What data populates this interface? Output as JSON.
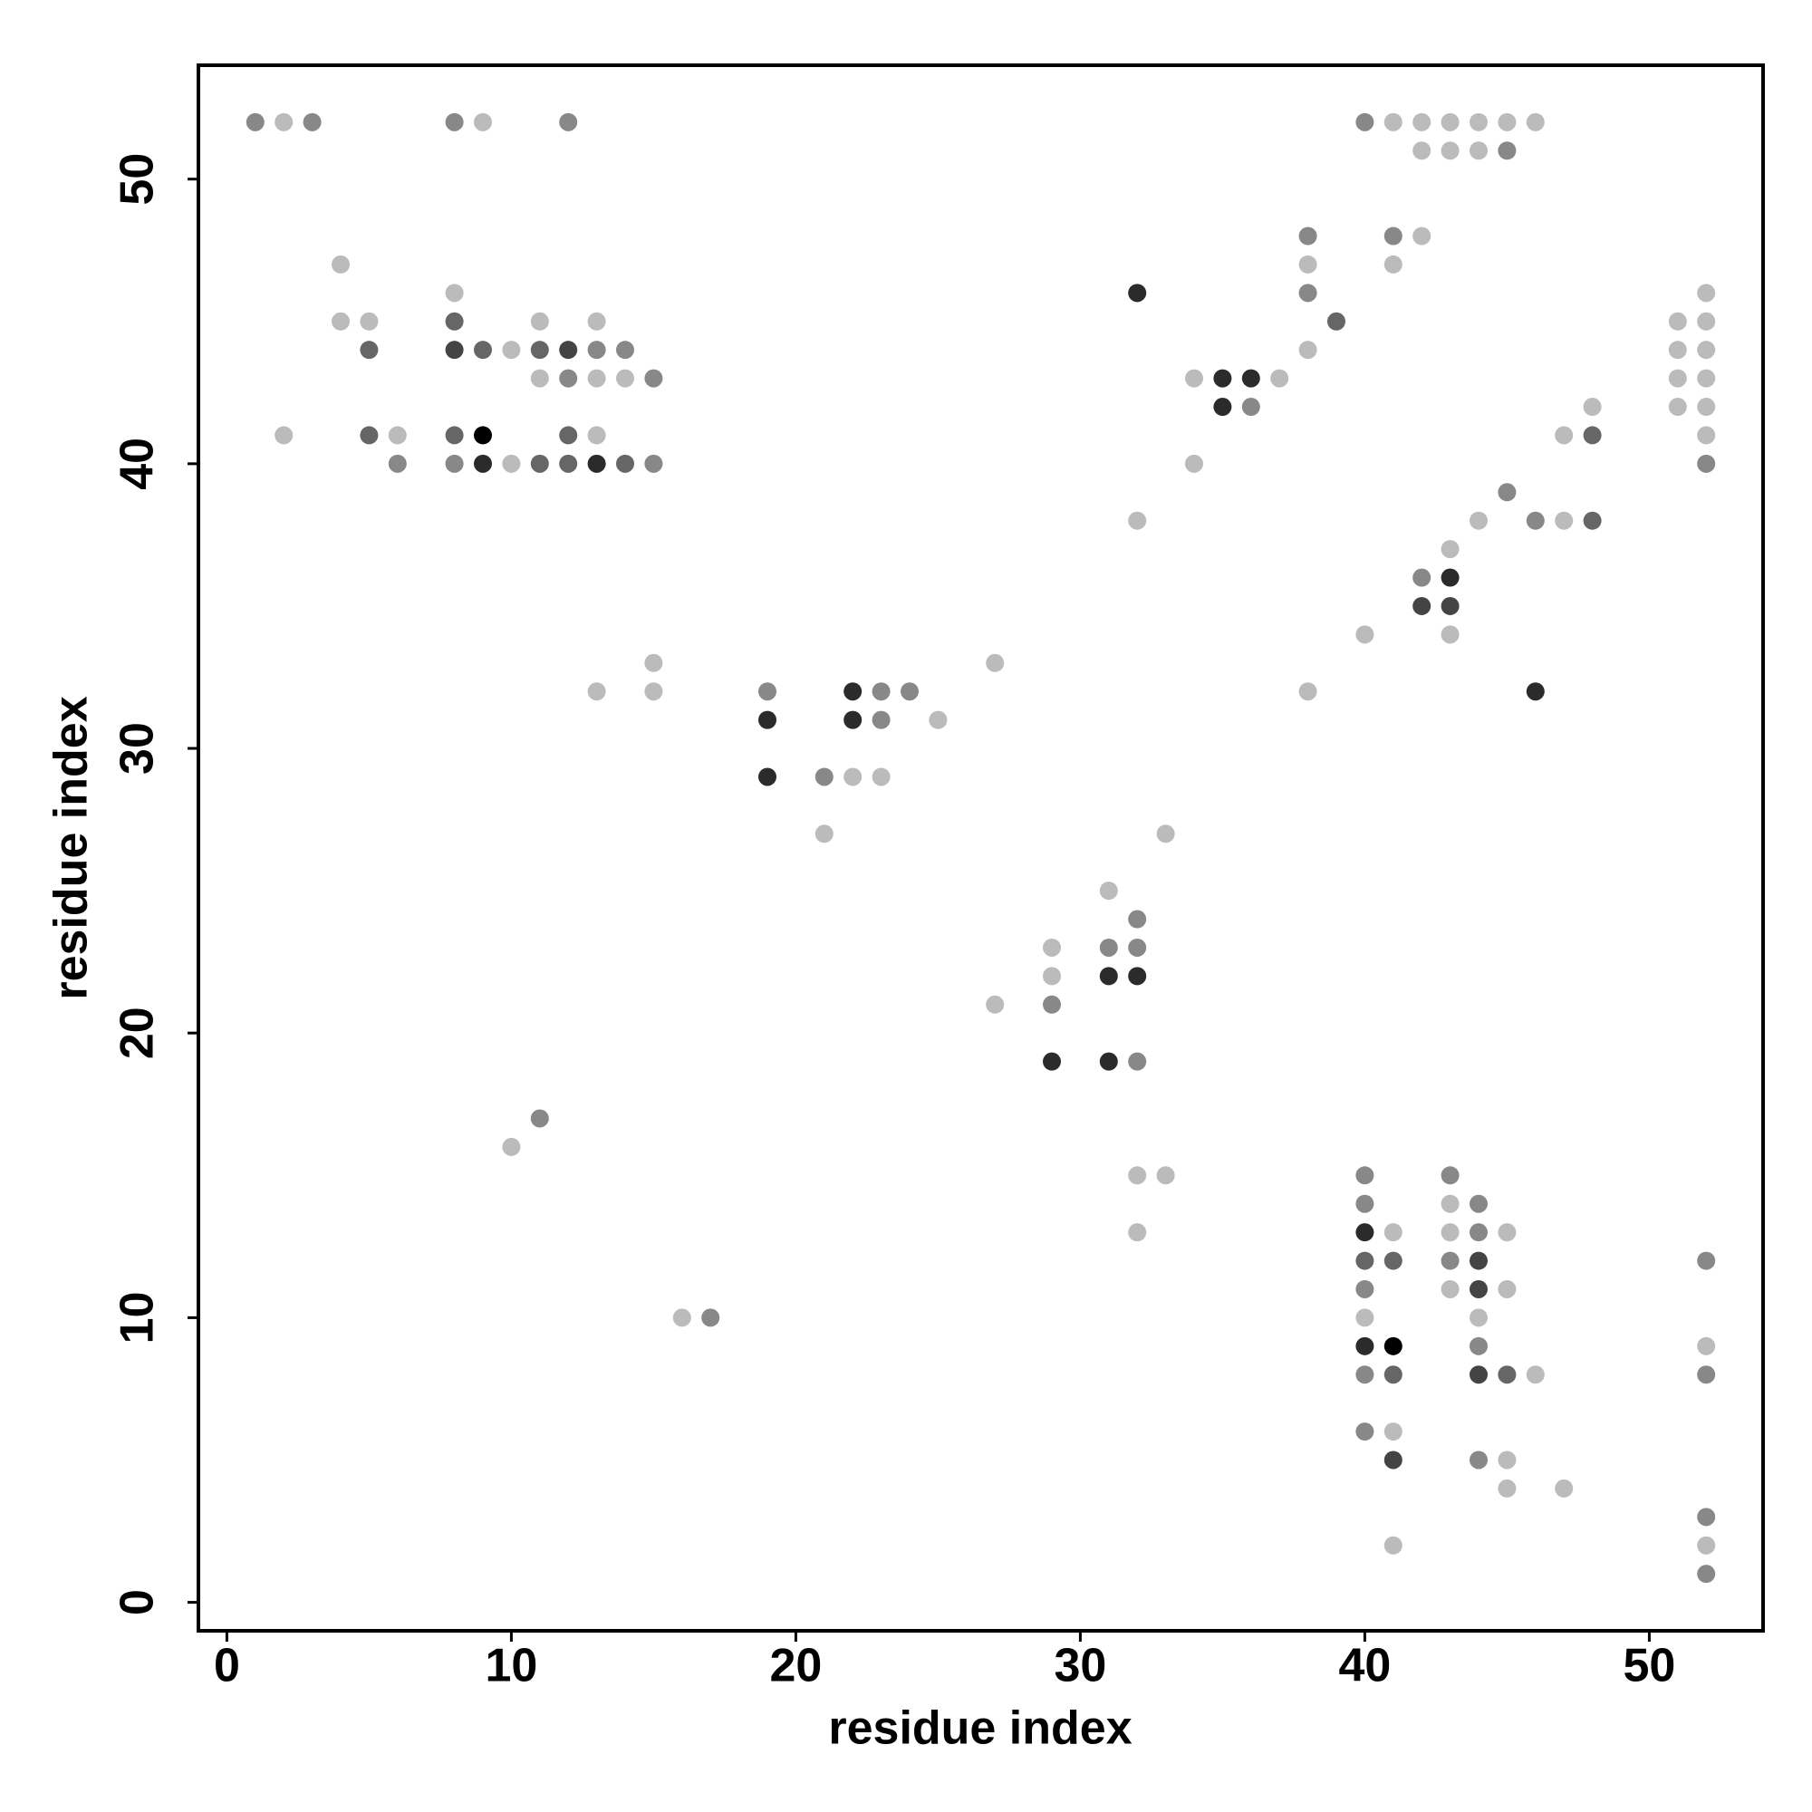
{
  "chart_data": {
    "type": "scatter",
    "xlabel": "residue index",
    "ylabel": "residue index",
    "xlim": [
      -1,
      54
    ],
    "ylim": [
      -1,
      54
    ],
    "xticks": [
      0,
      10,
      20,
      30,
      40,
      50
    ],
    "yticks": [
      0,
      10,
      20,
      30,
      40,
      50
    ],
    "series": [
      {
        "color": "#bbbbbb",
        "x": [
          2,
          9,
          41,
          42,
          43,
          44,
          45,
          46,
          42,
          43,
          44,
          42,
          4,
          38,
          41,
          8,
          52,
          4,
          5,
          11,
          13,
          51,
          52,
          10,
          38,
          51,
          52,
          11,
          13,
          14,
          34,
          37,
          51,
          52,
          48,
          51,
          52,
          2,
          6,
          13,
          47,
          52,
          10,
          34,
          32,
          44,
          47,
          43,
          40,
          43,
          15,
          27,
          13,
          15,
          38,
          25,
          22,
          23,
          21,
          33,
          31,
          29,
          29,
          27,
          10,
          32,
          33,
          43,
          32,
          41,
          43,
          45,
          43,
          45,
          16,
          40,
          44,
          52,
          46,
          41,
          45,
          45,
          47,
          41,
          52
        ],
        "values": [
          52,
          52,
          52,
          52,
          52,
          52,
          52,
          52,
          51,
          51,
          51,
          48,
          47,
          47,
          47,
          46,
          46,
          45,
          45,
          45,
          45,
          45,
          45,
          44,
          44,
          44,
          44,
          43,
          43,
          43,
          43,
          43,
          43,
          43,
          42,
          42,
          42,
          41,
          41,
          41,
          41,
          41,
          40,
          40,
          38,
          38,
          38,
          37,
          34,
          34,
          33,
          33,
          32,
          32,
          32,
          31,
          29,
          29,
          27,
          27,
          25,
          23,
          22,
          21,
          16,
          15,
          15,
          14,
          13,
          13,
          13,
          13,
          11,
          11,
          10,
          10,
          10,
          9,
          8,
          6,
          5,
          4,
          4,
          2,
          2
        ]
      },
      {
        "color": "#888888",
        "x": [
          1,
          3,
          8,
          12,
          40,
          45,
          38,
          41,
          38,
          13,
          14,
          12,
          15,
          36,
          6,
          8,
          15,
          52,
          45,
          46,
          42,
          19,
          23,
          24,
          23,
          21,
          32,
          31,
          32,
          29,
          32,
          11,
          40,
          43,
          40,
          44,
          44,
          43,
          52,
          40,
          17,
          44,
          40,
          52,
          40,
          44,
          52,
          52
        ],
        "values": [
          52,
          52,
          52,
          52,
          52,
          51,
          48,
          48,
          46,
          44,
          44,
          43,
          43,
          42,
          40,
          40,
          40,
          40,
          39,
          38,
          36,
          32,
          32,
          32,
          31,
          29,
          24,
          23,
          23,
          21,
          19,
          17,
          15,
          15,
          14,
          14,
          13,
          12,
          12,
          11,
          10,
          9,
          8,
          8,
          6,
          5,
          3,
          1
        ]
      },
      {
        "color": "#666666",
        "x": [
          8,
          39,
          5,
          9,
          11,
          5,
          8,
          12,
          48,
          11,
          12,
          14,
          48,
          40,
          41,
          41,
          45
        ],
        "values": [
          45,
          45,
          44,
          44,
          44,
          41,
          41,
          41,
          41,
          40,
          40,
          40,
          38,
          12,
          12,
          8,
          8
        ]
      },
      {
        "color": "#444444",
        "x": [
          8,
          12,
          42,
          43,
          44,
          44,
          44,
          41
        ],
        "values": [
          44,
          44,
          35,
          35,
          12,
          11,
          8,
          5
        ]
      },
      {
        "color": "#2b2b2b",
        "x": [
          32,
          35,
          36,
          35,
          9,
          13,
          43,
          22,
          46,
          19,
          22,
          19,
          31,
          32,
          29,
          31,
          40,
          40
        ],
        "values": [
          46,
          43,
          43,
          42,
          40,
          40,
          36,
          32,
          32,
          31,
          31,
          29,
          22,
          22,
          19,
          19,
          13,
          9
        ]
      },
      {
        "color": "#000000",
        "x": [
          9,
          41
        ],
        "values": [
          41,
          9
        ]
      }
    ]
  }
}
